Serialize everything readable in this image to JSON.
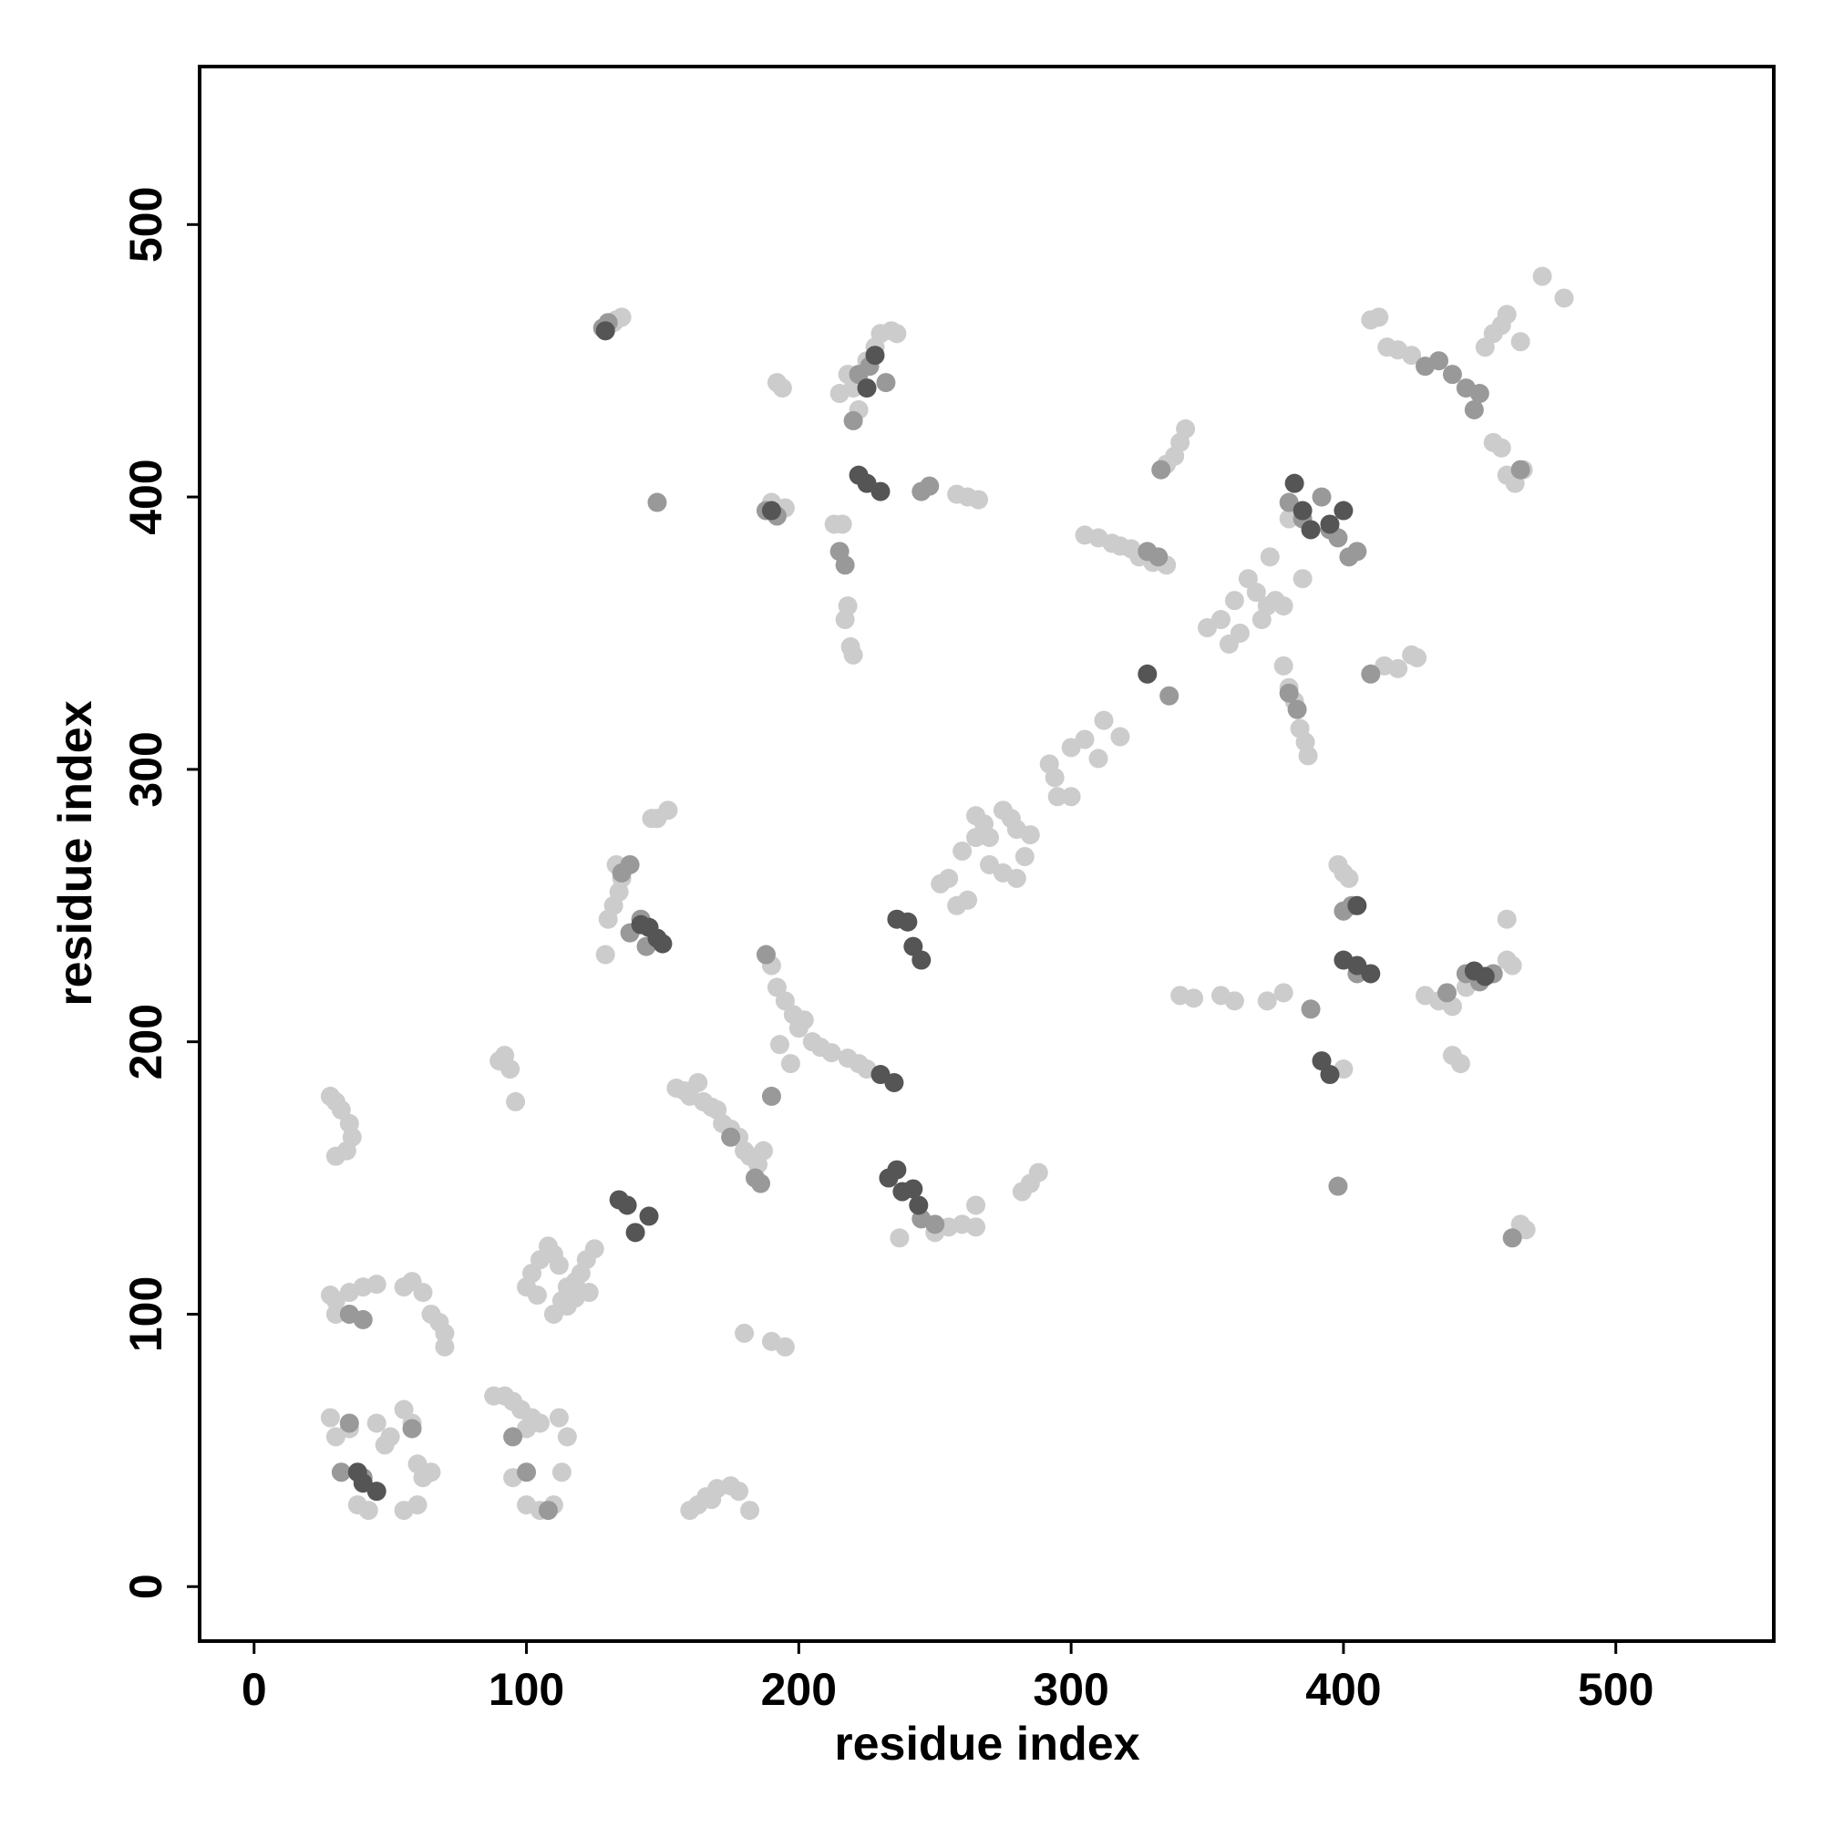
{
  "chart_data": {
    "type": "scatter",
    "xlabel": "residue index",
    "ylabel": "residue index",
    "xlim": [
      -20,
      558
    ],
    "ylim": [
      -20,
      558
    ],
    "xticks": [
      0,
      100,
      200,
      300,
      400,
      500
    ],
    "yticks": [
      0,
      100,
      200,
      300,
      400,
      500
    ],
    "series": [
      {
        "color": "#cccccc",
        "x": [
          133,
          135,
          132,
          220,
          215,
          222,
          228,
          230,
          234,
          236,
          218,
          225,
          192,
          194,
          262,
          266,
          258,
          190,
          195,
          216,
          213,
          218,
          217,
          219,
          220,
          305,
          310,
          315,
          318,
          322,
          325,
          330,
          335,
          338,
          340,
          342,
          335,
          350,
          355,
          358,
          362,
          365,
          360,
          368,
          372,
          375,
          378,
          373,
          370,
          385,
          380,
          380,
          382,
          384,
          386,
          387,
          378,
          415,
          420,
          425,
          427,
          410,
          413,
          416,
          420,
          425,
          455,
          458,
          460,
          452,
          465,
          455,
          458,
          460,
          463,
          466,
          473,
          481,
          300,
          305,
          312,
          318,
          310,
          295,
          300,
          292,
          294,
          265,
          268,
          270,
          275,
          278,
          280,
          285,
          270,
          275,
          280,
          283,
          255,
          252,
          258,
          262,
          260,
          265,
          132,
          134,
          135,
          133,
          130,
          129,
          146,
          148,
          152,
          190,
          192,
          195,
          198,
          200,
          202,
          205,
          208,
          212,
          218,
          222,
          225,
          155,
          158,
          160,
          163,
          165,
          168,
          170,
          172,
          175,
          178,
          180,
          182,
          185,
          187,
          197,
          193,
          237,
          250,
          255,
          260,
          265,
          265,
          282,
          285,
          288,
          100,
          102,
          105,
          108,
          110,
          112,
          115,
          118,
          120,
          122,
          125,
          110,
          113,
          115,
          118,
          123,
          104,
          90,
          92,
          94,
          96,
          28,
          30,
          32,
          35,
          36,
          34,
          30,
          28,
          30,
          35,
          40,
          45,
          30,
          55,
          58,
          62,
          65,
          68,
          70,
          70,
          28,
          30,
          35,
          45,
          50,
          55,
          58,
          60,
          62,
          65,
          38,
          42,
          55,
          60,
          48,
          88,
          92,
          95,
          98,
          102,
          105,
          112,
          115,
          100,
          95,
          100,
          105,
          110,
          113,
          160,
          163,
          166,
          170,
          175,
          178,
          182,
          168,
          180,
          190,
          195,
          340,
          345,
          355,
          360,
          372,
          378,
          398,
          400,
          402,
          430,
          435,
          440,
          445,
          460,
          462,
          460,
          440,
          443,
          400,
          465,
          467
        ],
        "values": [
          465,
          466,
          464,
          440,
          438,
          432,
          455,
          460,
          461,
          460,
          445,
          450,
          442,
          440,
          400,
          399,
          401,
          398,
          396,
          390,
          390,
          360,
          355,
          345,
          342,
          386,
          385,
          383,
          382,
          381,
          378,
          376,
          375,
          415,
          420,
          425,
          412,
          352,
          355,
          346,
          350,
          370,
          362,
          365,
          360,
          362,
          360,
          378,
          355,
          370,
          392,
          330,
          325,
          315,
          310,
          305,
          338,
          338,
          337,
          342,
          341,
          465,
          466,
          455,
          454,
          452,
          460,
          463,
          467,
          455,
          457,
          420,
          418,
          408,
          405,
          410,
          481,
          473,
          308,
          311,
          318,
          312,
          304,
          290,
          290,
          302,
          297,
          283,
          280,
          275,
          285,
          282,
          278,
          276,
          265,
          262,
          260,
          268,
          260,
          258,
          250,
          252,
          270,
          275,
          250,
          255,
          260,
          265,
          245,
          232,
          282,
          282,
          285,
          228,
          220,
          215,
          210,
          205,
          208,
          200,
          198,
          196,
          194,
          192,
          190,
          183,
          182,
          180,
          185,
          178,
          176,
          175,
          170,
          168,
          165,
          160,
          158,
          155,
          160,
          192,
          199,
          128,
          130,
          132,
          133,
          132,
          140,
          145,
          148,
          152,
          110,
          115,
          120,
          125,
          122,
          118,
          110,
          112,
          115,
          120,
          124,
          100,
          105,
          103,
          106,
          108,
          107,
          193,
          195,
          190,
          178,
          180,
          178,
          175,
          170,
          165,
          160,
          158,
          107,
          105,
          108,
          110,
          111,
          100,
          110,
          112,
          108,
          100,
          97,
          93,
          88,
          62,
          55,
          58,
          60,
          55,
          65,
          60,
          45,
          40,
          42,
          30,
          28,
          28,
          30,
          52,
          70,
          70,
          68,
          65,
          62,
          60,
          62,
          55,
          58,
          40,
          30,
          28,
          30,
          42,
          28,
          30,
          33,
          36,
          37,
          35,
          28,
          32,
          93,
          90,
          88,
          217,
          216,
          217,
          215,
          215,
          218,
          265,
          262,
          260,
          217,
          215,
          213,
          220,
          230,
          228,
          245,
          195,
          192,
          190,
          133,
          131
        ]
      },
      {
        "color": "#999999",
        "x": [
          128,
          130,
          222,
          226,
          220,
          232,
          248,
          245,
          188,
          192,
          148,
          215,
          217,
          328,
          332,
          333,
          380,
          385,
          392,
          398,
          405,
          402,
          395,
          380,
          383,
          410,
          430,
          435,
          440,
          445,
          448,
          450,
          465,
          336,
          138,
          142,
          144,
          135,
          138,
          188,
          190,
          175,
          184,
          186,
          245,
          250,
          35,
          40,
          32,
          40,
          58,
          35,
          100,
          95,
          108,
          400,
          403,
          405,
          388,
          438,
          445,
          450,
          455,
          462,
          398
        ],
        "values": [
          462,
          464,
          445,
          448,
          428,
          442,
          404,
          402,
          395,
          393,
          398,
          380,
          375,
          380,
          378,
          410,
          398,
          392,
          400,
          385,
          380,
          378,
          388,
          328,
          322,
          335,
          448,
          450,
          445,
          440,
          432,
          438,
          410,
          327,
          240,
          245,
          235,
          262,
          265,
          232,
          180,
          165,
          150,
          148,
          135,
          133,
          100,
          98,
          42,
          40,
          58,
          60,
          42,
          55,
          28,
          248,
          250,
          225,
          212,
          218,
          225,
          222,
          225,
          128,
          147
        ]
      },
      {
        "color": "#555555",
        "x": [
          129,
          228,
          225,
          225,
          230,
          222,
          190,
          385,
          388,
          382,
          395,
          400,
          328,
          145,
          148,
          150,
          142,
          236,
          240,
          242,
          245,
          230,
          235,
          137,
          140,
          145,
          134,
          233,
          236,
          238,
          242,
          244,
          40,
          45,
          38,
          400,
          405,
          410,
          405,
          392,
          395,
          448,
          452
        ],
        "values": [
          461,
          452,
          440,
          405,
          402,
          408,
          395,
          395,
          388,
          405,
          390,
          395,
          335,
          242,
          238,
          236,
          243,
          245,
          244,
          235,
          230,
          188,
          185,
          140,
          130,
          136,
          142,
          150,
          153,
          145,
          146,
          140,
          38,
          35,
          42,
          230,
          228,
          225,
          250,
          193,
          188,
          226,
          224
        ]
      }
    ]
  }
}
